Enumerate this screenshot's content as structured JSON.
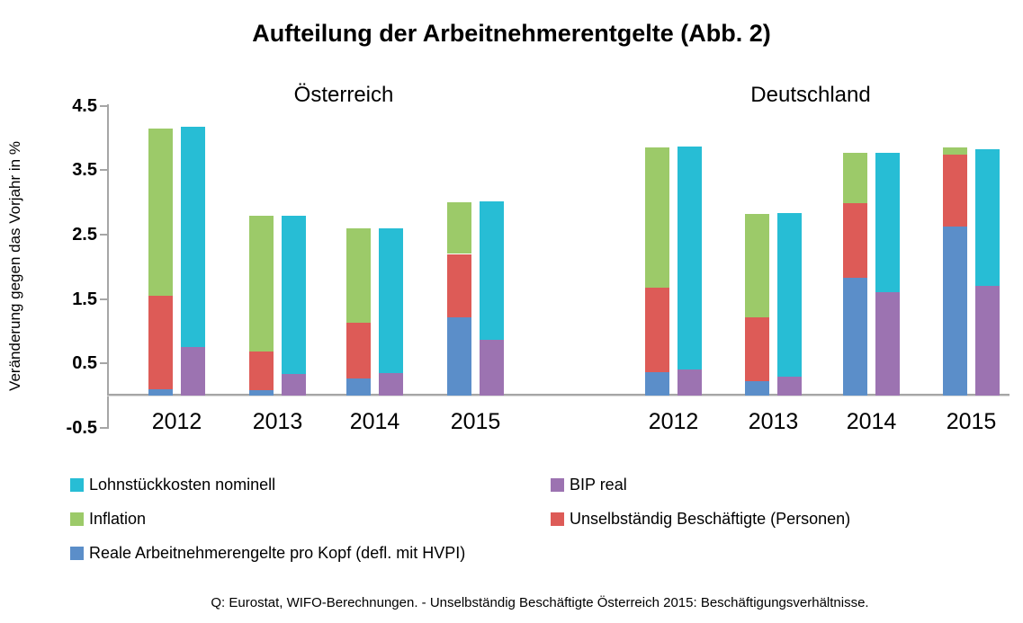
{
  "title": "Aufteilung der Arbeitnehmerentgelte (Abb. 2)",
  "y_axis": {
    "label": "Veränderung gegen das Vorjahr in %",
    "ticks": [
      "4.5",
      "3.5",
      "2.5",
      "1.5",
      "0.5",
      "-0.5"
    ]
  },
  "footer": "Q: Eurostat, WIFO-Berechnungen. - Unselbständig Beschäftigte Österreich 2015: Beschäftigungsverhältnisse.",
  "colors": {
    "teal": "#27BDD5",
    "green": "#9CCA69",
    "red": "#DD5B57",
    "purple": "#9C73B1",
    "blue": "#5B8EC9",
    "axis_gray": "#A6A6A6"
  },
  "legend": {
    "columns": [
      [
        {
          "label": "Lohnstückkosten nominell",
          "color_key": "teal"
        },
        {
          "label": "Inflation",
          "color_key": "green"
        },
        {
          "label": "Reale Arbeitnehmerengelte pro Kopf (defl. mit HVPI)",
          "color_key": "blue"
        }
      ],
      [
        {
          "label": "BIP real",
          "color_key": "purple"
        },
        {
          "label": "Unselbständig Beschäftigte (Personen)",
          "color_key": "red"
        }
      ]
    ]
  },
  "chart_data": {
    "type": "bar",
    "title": "Aufteilung der Arbeitnehmerentgelte (Abb. 2)",
    "ylabel": "Veränderung gegen das Vorjahr in %",
    "xlabel": "",
    "ylim": [
      -0.5,
      4.5
    ],
    "yticks": [
      4.5,
      3.5,
      2.5,
      1.5,
      0.5,
      -0.5
    ],
    "grid": false,
    "legend_position": "bottom",
    "note": "Two stacked bars per year: left bar = Reale Arbeitnehmerengelte pro Kopf + Unselbständig Beschäftigte + Inflation; right bar = BIP real + Lohnstückkosten nominell. Values in % change vs previous year.",
    "panels": [
      {
        "title": "Österreich",
        "categories": [
          "2012",
          "2013",
          "2014",
          "2015"
        ],
        "stack1": {
          "series": [
            {
              "name": "Reale Arbeitnehmerengelte pro Kopf (defl. mit HVPI)",
              "color_key": "blue",
              "values": [
                0.1,
                0.08,
                0.26,
                1.22
              ]
            },
            {
              "name": "Unselbständig Beschäftigte (Personen)",
              "color_key": "red",
              "values": [
                1.45,
                0.6,
                0.87,
                0.98
              ]
            },
            {
              "name": "Inflation",
              "color_key": "green",
              "values": [
                2.6,
                2.12,
                1.47,
                0.8
              ]
            }
          ]
        },
        "stack2": {
          "series": [
            {
              "name": "BIP real",
              "color_key": "purple",
              "values": [
                0.75,
                0.34,
                0.35,
                0.87
              ]
            },
            {
              "name": "Lohnstückkosten nominell",
              "color_key": "teal",
              "values": [
                3.42,
                2.46,
                2.25,
                2.15
              ]
            }
          ]
        }
      },
      {
        "title": "Deutschland",
        "categories": [
          "2012",
          "2013",
          "2014",
          "2015"
        ],
        "stack1": {
          "series": [
            {
              "name": "Reale Arbeitnehmerengelte pro Kopf (defl. mit HVPI)",
              "color_key": "blue",
              "values": [
                0.36,
                0.22,
                1.83,
                2.63
              ]
            },
            {
              "name": "Unselbständig Beschäftigte (Personen)",
              "color_key": "red",
              "values": [
                1.31,
                1.0,
                1.16,
                1.11
              ]
            },
            {
              "name": "Inflation",
              "color_key": "green",
              "values": [
                2.18,
                1.6,
                0.78,
                0.11
              ]
            }
          ]
        },
        "stack2": {
          "series": [
            {
              "name": "BIP real",
              "color_key": "purple",
              "values": [
                0.4,
                0.29,
                1.6,
                1.7
              ]
            },
            {
              "name": "Lohnstückkosten nominell",
              "color_key": "teal",
              "values": [
                3.47,
                2.54,
                2.17,
                2.13
              ]
            }
          ]
        }
      }
    ]
  }
}
